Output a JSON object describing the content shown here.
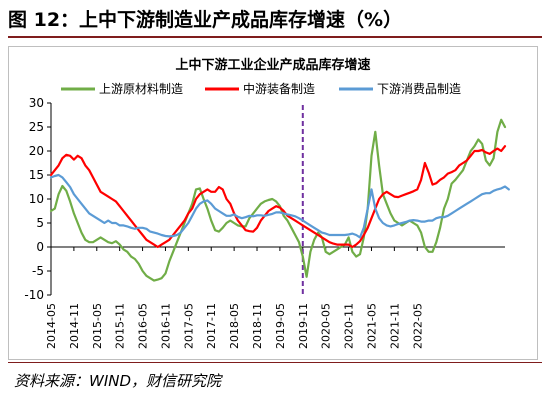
{
  "figure": {
    "title": "图 12：上中下游制造业产成品库存增速（%）",
    "source": "资料来源：WIND，财信研究院"
  },
  "colors": {
    "upstream": "#70ad47",
    "midstream": "#ff0000",
    "downstream": "#5b9bd5",
    "marker": "#7030a0",
    "title_rule": "#7f1d1d"
  },
  "chart_data": {
    "type": "line",
    "title": "上中下游工业企业产成品库存增速",
    "xlabel": "",
    "ylabel": "",
    "ylim": [
      -10,
      30
    ],
    "yticks": [
      -10,
      -5,
      0,
      5,
      10,
      15,
      20,
      25,
      30
    ],
    "xtick_labels": [
      "2014-05",
      "2014-11",
      "2015-05",
      "2015-11",
      "2016-05",
      "2016-11",
      "2017-05",
      "2017-11",
      "2018-05",
      "2018-11",
      "2019-05",
      "2019-11",
      "2020-05",
      "2020-11",
      "2021-05",
      "2021-11",
      "2022-05"
    ],
    "grid": false,
    "legend": "top",
    "marker_line": {
      "x": "2019-11",
      "style": "dashed"
    },
    "series": [
      {
        "name": "上游原材料制造",
        "color_key": "upstream",
        "values": [
          7.5,
          8,
          11,
          12.7,
          11.7,
          9.5,
          7,
          5,
          3,
          1.5,
          1,
          1,
          1.5,
          2,
          1.5,
          1,
          0.8,
          1.2,
          0.5,
          -0.5,
          -1,
          -2,
          -2.5,
          -3.5,
          -5,
          -6,
          -6.5,
          -7,
          -6.8,
          -6.5,
          -5.5,
          -3,
          -1,
          1,
          3,
          5,
          7,
          9,
          12,
          12.2,
          10,
          8,
          5.5,
          3.5,
          3.2,
          4,
          5,
          5.5,
          5,
          4.5,
          4.3,
          4.3,
          6,
          7,
          8,
          9,
          9.5,
          9.8,
          10,
          9.5,
          8.5,
          6.5,
          5.5,
          4,
          2.5,
          1,
          -2,
          -6.2,
          -1,
          1.5,
          3,
          2,
          -1,
          -1.5,
          -1,
          -0.5,
          0,
          0.5,
          2,
          -1,
          -2,
          -1.5,
          2,
          8,
          19,
          24,
          17,
          11,
          9,
          7,
          5.5,
          5,
          4.5,
          5,
          5.5,
          5,
          4.5,
          3,
          0,
          -1,
          -1,
          1,
          4,
          8,
          10,
          13.2,
          14,
          15,
          16,
          18,
          20,
          21,
          22.4,
          21.5,
          18,
          17,
          18.5,
          24,
          26.5,
          25
        ]
      },
      {
        "name": "中游装备制造",
        "color_key": "midstream",
        "values": [
          15,
          16,
          17,
          18.5,
          19.2,
          19,
          18.2,
          19,
          18.5,
          17,
          16,
          14.5,
          13,
          11.5,
          11,
          10.5,
          10,
          9.5,
          8.5,
          7.5,
          6.5,
          5.5,
          4.5,
          3.5,
          2.5,
          1.5,
          1,
          0.5,
          0,
          0.5,
          1,
          1.5,
          2.5,
          3.5,
          4.5,
          5.5,
          7,
          8,
          10,
          11,
          11.5,
          12,
          11.5,
          11.5,
          12.5,
          12,
          10,
          9,
          7,
          5.5,
          4.5,
          3.5,
          3.3,
          3.2,
          4,
          5.5,
          6.5,
          7.5,
          8,
          8.5,
          8.2,
          7.5,
          6.5,
          6,
          5.5,
          5,
          4.5,
          4,
          3.5,
          3,
          2.5,
          2,
          1.5,
          1,
          0.7,
          0.5,
          0.5,
          0.5,
          0.5,
          0,
          0.5,
          1.2,
          2.5,
          4,
          6,
          8,
          10,
          11,
          11.5,
          11,
          10.5,
          10.4,
          10.7,
          11,
          11.3,
          11.6,
          12,
          14,
          17.5,
          15.5,
          13,
          13.3,
          14,
          14.5,
          15.3,
          15.6,
          16,
          17,
          17.5,
          18,
          19,
          20,
          20,
          20.2,
          19.7,
          19.4,
          20,
          20.5,
          20,
          21
        ]
      },
      {
        "name": "下游消费品制造",
        "color_key": "downstream",
        "values": [
          14.5,
          14.8,
          15,
          14.5,
          13.5,
          12.5,
          11,
          10,
          9,
          8,
          7,
          6.5,
          6,
          5.5,
          5,
          5.5,
          5,
          5,
          4.5,
          4.5,
          4.3,
          4,
          3.8,
          4,
          4,
          3.8,
          3.2,
          3,
          2.8,
          2.5,
          2.3,
          2.2,
          2.3,
          2.5,
          3,
          4,
          5,
          6.5,
          8,
          9,
          9.5,
          9.7,
          9,
          8,
          7.5,
          7,
          6.5,
          6.5,
          6.8,
          6.3,
          6,
          6.2,
          6.5,
          6.4,
          6.6,
          6.6,
          6.5,
          6.7,
          6.9,
          7.2,
          7.2,
          7,
          6.8,
          6.6,
          6.4,
          6,
          5.5,
          5,
          4.5,
          4,
          3.5,
          3,
          2.8,
          2.5,
          2.5,
          2.5,
          2.5,
          2.5,
          2.6,
          2.8,
          2.5,
          2,
          4,
          8,
          12,
          8,
          6,
          5,
          4.5,
          4.3,
          4.5,
          4.8,
          5,
          5.2,
          5.5,
          5.6,
          5.5,
          5.3,
          5.3,
          5.5,
          5.5,
          6,
          6.2,
          6.2,
          6.5,
          7,
          7.5,
          8,
          8.5,
          9,
          9.5,
          10,
          10.5,
          11,
          11.2,
          11.2,
          11.7,
          12,
          12.2,
          12.6,
          12
        ]
      }
    ]
  }
}
